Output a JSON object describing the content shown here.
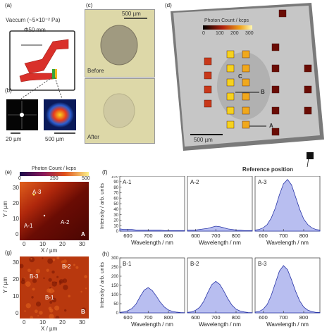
{
  "panels": {
    "a": {
      "letter": "(a)",
      "vacuum_label": "Vaccum (~5×10⁻² Pa)",
      "diameter_label": "Φ50 mm"
    },
    "b": {
      "letter": "(b)",
      "scale_left": "20 µm",
      "scale_right": "500 µm"
    },
    "c": {
      "letter": "(c)",
      "scale": "500 µm",
      "before": "Before",
      "after": "After"
    },
    "d": {
      "letter": "(d)",
      "colorbar_title": "Photon Count / kcps",
      "colorbar_ticks": [
        "0",
        "100",
        "200",
        "300"
      ],
      "scale": "500 µm",
      "label_b": "B",
      "label_c": "C",
      "label_a": "A",
      "reference": "Reference position"
    },
    "e": {
      "letter": "(e)",
      "colorbar_title": "Photon Count / kcps",
      "colorbar_ticks": [
        "0",
        "250",
        "500"
      ],
      "ylabel": "Y / µm",
      "xlabel": "X / µm",
      "yticks": [
        "30",
        "20",
        "10",
        "0"
      ],
      "xticks": [
        "0",
        "10",
        "20",
        "30"
      ],
      "spot_labels": [
        "A-3",
        "A-1",
        "A-2"
      ],
      "corner": "A"
    },
    "f": {
      "letter": "(f)",
      "ylabel": "Intensity / arb. units",
      "xlabel": "Wavelength / nm",
      "yticks": [
        "0",
        "10",
        "20",
        "30",
        "40",
        "50",
        "60",
        "70",
        "80",
        "90",
        "100"
      ],
      "xticks": [
        "600",
        "700",
        "800"
      ],
      "subplots": [
        "A-1",
        "A-2",
        "A-3"
      ]
    },
    "g": {
      "letter": "(g)",
      "ylabel": "Y / µm",
      "xlabel": "X / µm",
      "yticks": [
        "30",
        "20",
        "10",
        "0"
      ],
      "xticks": [
        "0",
        "10",
        "20",
        "30"
      ],
      "spot_labels": [
        "B-2",
        "B-3",
        "B-1"
      ],
      "corner": "B"
    },
    "h": {
      "letter": "(h)",
      "ylabel": "Intensity / arb. units",
      "xlabel": "Wavelength / nm",
      "yticks": [
        "0",
        "50",
        "100",
        "150",
        "200",
        "250",
        "300"
      ],
      "xticks": [
        "600",
        "700",
        "800"
      ],
      "subplots": [
        "B-1",
        "B-2",
        "B-3"
      ]
    }
  },
  "chart_data": [
    {
      "type": "area",
      "panel": "(f)",
      "xlabel": "Wavelength / nm",
      "ylabel": "Intensity / arb. units",
      "xlim": [
        560,
        880
      ],
      "ylim": [
        0,
        100
      ],
      "x": [
        560,
        580,
        600,
        620,
        640,
        660,
        680,
        700,
        720,
        740,
        760,
        780,
        800,
        820,
        840,
        860,
        880
      ],
      "series": [
        {
          "name": "A-1",
          "values": [
            4,
            3,
            3,
            3,
            2,
            2,
            2,
            2,
            2,
            2,
            2,
            1,
            1,
            1,
            1,
            1,
            1
          ]
        },
        {
          "name": "A-2",
          "values": [
            2,
            2,
            2,
            3,
            4,
            5,
            7,
            9,
            8,
            6,
            4,
            3,
            2,
            2,
            1,
            1,
            1
          ]
        },
        {
          "name": "A-3",
          "values": [
            2,
            3,
            6,
            12,
            24,
            42,
            66,
            86,
            94,
            84,
            62,
            40,
            22,
            12,
            6,
            3,
            2
          ]
        }
      ]
    },
    {
      "type": "area",
      "panel": "(h)",
      "xlabel": "Wavelength / nm",
      "ylabel": "Intensity / arb. units",
      "xlim": [
        560,
        880
      ],
      "ylim": [
        0,
        300
      ],
      "x": [
        560,
        580,
        600,
        620,
        640,
        660,
        680,
        700,
        720,
        740,
        760,
        780,
        800,
        820,
        840,
        860,
        880
      ],
      "series": [
        {
          "name": "B-1",
          "values": [
            3,
            5,
            12,
            24,
            48,
            88,
            124,
            138,
            122,
            92,
            58,
            32,
            16,
            8,
            4,
            2,
            1
          ]
        },
        {
          "name": "B-2",
          "values": [
            3,
            5,
            14,
            30,
            62,
            110,
            154,
            172,
            155,
            118,
            76,
            42,
            20,
            10,
            5,
            2,
            1
          ]
        },
        {
          "name": "B-3",
          "values": [
            4,
            8,
            20,
            46,
            96,
            162,
            228,
            258,
            236,
            180,
            118,
            66,
            32,
            15,
            7,
            3,
            2
          ]
        }
      ]
    }
  ]
}
